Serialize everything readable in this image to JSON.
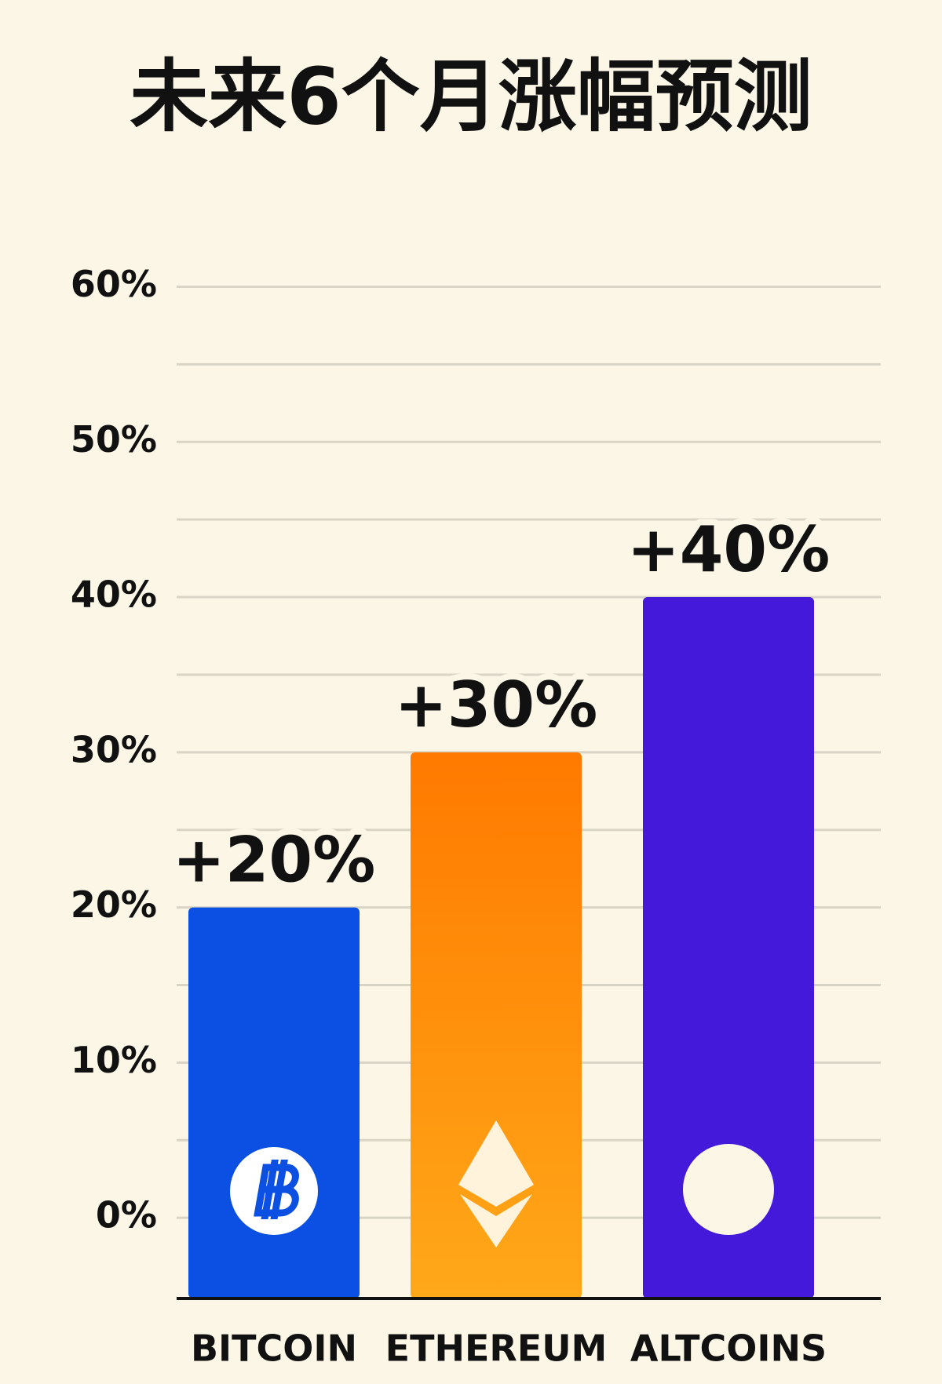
{
  "chart_data": {
    "type": "bar",
    "title": "未来6个月涨幅预测",
    "categories": [
      "BITCOIN",
      "ETHEREUM",
      "ALTCOINS"
    ],
    "values": [
      20,
      30,
      40
    ],
    "value_labels": [
      "+20%",
      "+30%",
      "+40%"
    ],
    "colors": [
      "#0b50e2",
      "#ff8200",
      "#4419d9"
    ],
    "ylim": [
      -5.2,
      60
    ],
    "yticks": [
      {
        "value": 0,
        "label": "0%"
      },
      {
        "value": 10,
        "label": "10%"
      },
      {
        "value": 20,
        "label": "20%"
      },
      {
        "value": 30,
        "label": "30%"
      },
      {
        "value": 40,
        "label": "40%"
      },
      {
        "value": 50,
        "label": "50%"
      },
      {
        "value": 60,
        "label": "60%"
      }
    ],
    "minor_yticks": [
      5,
      15,
      25,
      35,
      45,
      55
    ],
    "grid": true
  }
}
